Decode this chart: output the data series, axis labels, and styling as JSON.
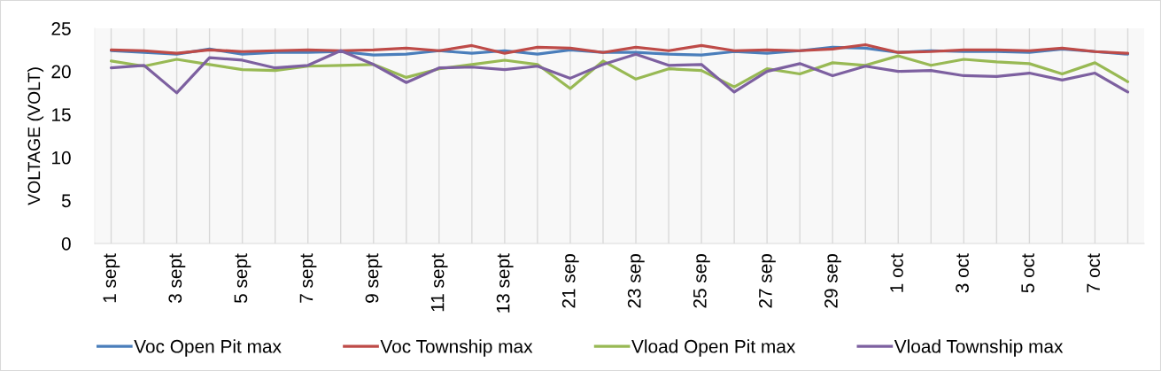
{
  "chart_data": {
    "type": "line",
    "ylabel": "VOLTAGE (VOLT)",
    "categories": [
      "1 sept",
      null,
      "3 sept",
      null,
      "5 sept",
      null,
      "7 sept",
      null,
      "9 sept",
      null,
      "11 sept",
      null,
      "13 sept",
      null,
      "21 sep",
      null,
      "23 sep",
      null,
      "25 sep",
      null,
      "27 sep",
      null,
      "29 sep",
      null,
      "1 oct",
      null,
      "3 oct",
      null,
      "5 oct",
      null,
      "7 oct",
      null
    ],
    "series": [
      {
        "name": "Voc Open Pit max",
        "color": "#4a7ebb",
        "values": [
          22.4,
          22.2,
          22.0,
          22.6,
          22.0,
          22.2,
          22.2,
          22.3,
          21.9,
          22.0,
          22.4,
          22.1,
          22.4,
          22.0,
          22.5,
          22.2,
          22.2,
          22.0,
          21.9,
          22.3,
          22.1,
          22.4,
          22.8,
          22.7,
          22.2,
          22.4,
          22.3,
          22.3,
          22.2,
          22.6,
          22.3,
          22.0
        ]
      },
      {
        "name": "Voc Township max",
        "color": "#be4b48",
        "values": [
          22.5,
          22.4,
          22.1,
          22.5,
          22.3,
          22.4,
          22.5,
          22.4,
          22.5,
          22.7,
          22.4,
          23.0,
          22.1,
          22.8,
          22.7,
          22.2,
          22.8,
          22.4,
          23.0,
          22.4,
          22.5,
          22.4,
          22.6,
          23.1,
          22.2,
          22.3,
          22.5,
          22.5,
          22.4,
          22.7,
          22.3,
          22.1
        ]
      },
      {
        "name": "Vload Open Pit max",
        "color": "#98b954",
        "values": [
          21.2,
          20.6,
          21.4,
          20.8,
          20.2,
          20.1,
          20.6,
          20.7,
          20.8,
          19.3,
          20.3,
          20.8,
          21.3,
          20.8,
          18.0,
          21.2,
          19.1,
          20.3,
          20.1,
          18.2,
          20.3,
          19.7,
          21.0,
          20.7,
          21.8,
          20.7,
          21.4,
          21.1,
          20.9,
          19.7,
          21.0,
          18.8
        ]
      },
      {
        "name": "Vload Township max",
        "color": "#7d60a0",
        "values": [
          20.4,
          20.7,
          17.5,
          21.6,
          21.3,
          20.4,
          20.7,
          22.4,
          20.8,
          18.7,
          20.4,
          20.5,
          20.2,
          20.6,
          19.2,
          20.8,
          22.0,
          20.7,
          20.8,
          17.6,
          20.0,
          20.9,
          19.5,
          20.6,
          20.0,
          20.1,
          19.5,
          19.4,
          19.8,
          19.0,
          19.8,
          17.6
        ]
      }
    ],
    "ylim": [
      0,
      25
    ],
    "yticks": [
      0,
      5,
      10,
      15,
      20,
      25
    ],
    "grid": "x",
    "legend": "bottom"
  }
}
